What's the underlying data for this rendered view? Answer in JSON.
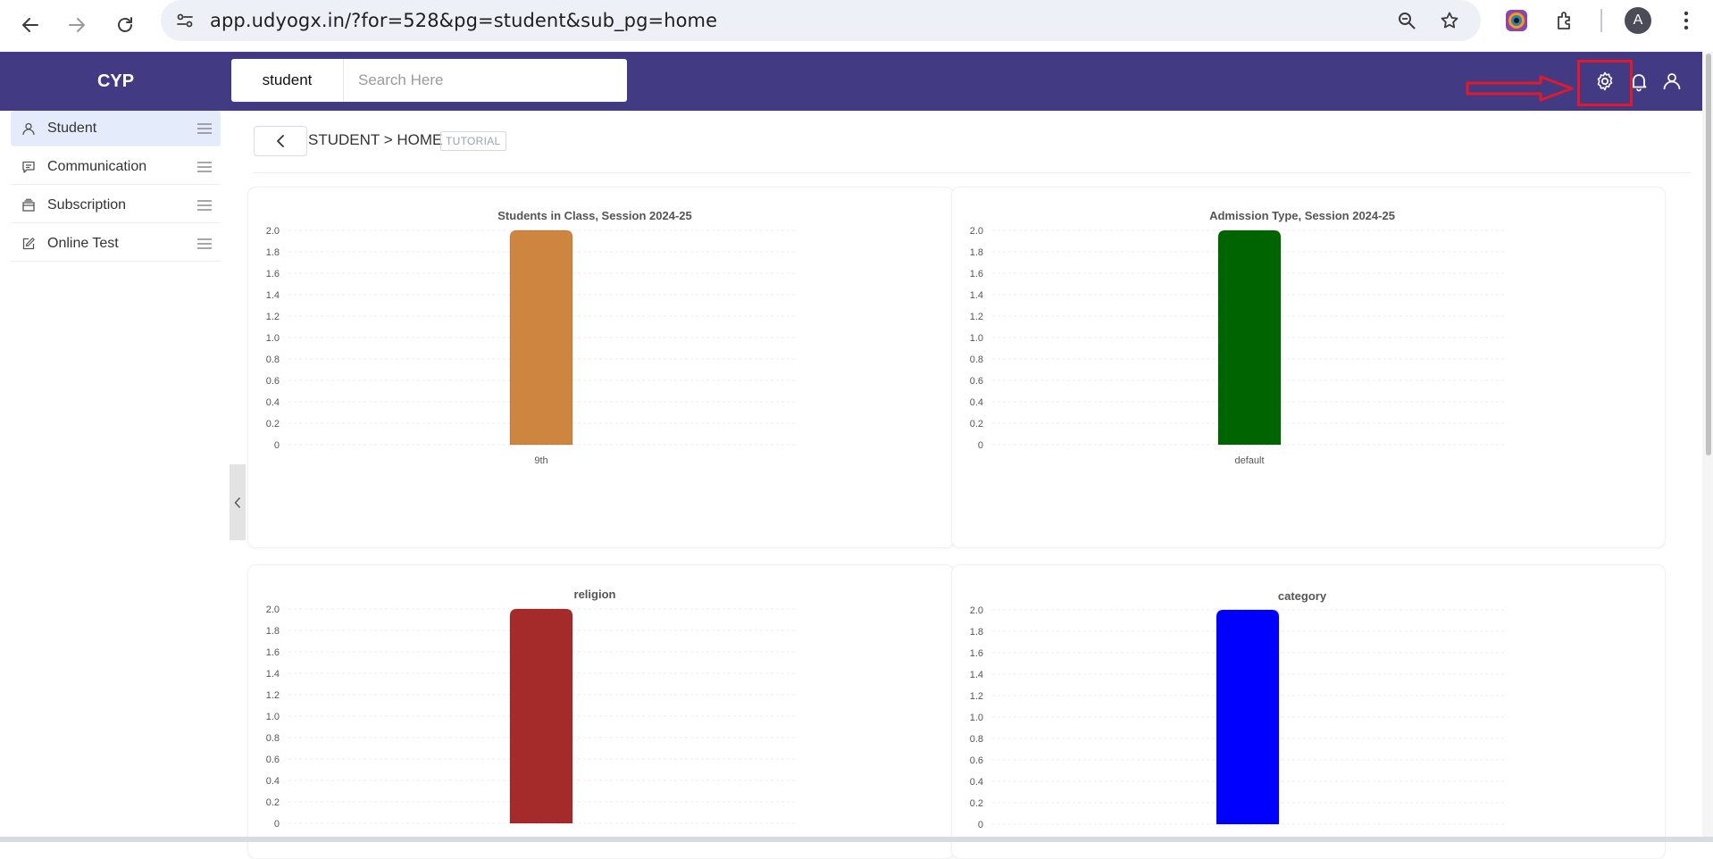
{
  "browser": {
    "url": "app.udyogx.in/?for=528&pg=student&sub_pg=home",
    "profile_initial": "A",
    "icons": [
      "back-arrow-icon",
      "forward-arrow-icon",
      "reload-icon",
      "site-settings-icon",
      "zoom-icon",
      "bookmark-star-icon",
      "extension-app-icon",
      "extensions-puzzle-icon",
      "kebab-menu-icon"
    ]
  },
  "header": {
    "brand": "CYP",
    "search_module": "student",
    "search_placeholder": "Search Here",
    "icons": [
      "settings-gear-icon",
      "notification-bell-icon",
      "user-profile-icon"
    ],
    "highlight_color": "#e5182b",
    "bg_color": "#433a84"
  },
  "sidebar": {
    "items": [
      {
        "label": "Student",
        "icon": "person-icon",
        "active": true
      },
      {
        "label": "Communication",
        "icon": "message-icon",
        "active": false
      },
      {
        "label": "Subscription",
        "icon": "card-stack-icon",
        "active": false
      },
      {
        "label": "Online Test",
        "icon": "edit-square-icon",
        "active": false
      }
    ]
  },
  "main": {
    "breadcrumb": "STUDENT > HOME",
    "tutorial": "TUTORIAL"
  },
  "chart_data": [
    {
      "type": "bar",
      "title": "Students in Class, Session 2024-25",
      "categories": [
        "9th"
      ],
      "values": [
        2
      ],
      "ylim": [
        0,
        2
      ],
      "yticks": [
        "0",
        "0.2",
        "0.4",
        "0.6",
        "0.8",
        "1.0",
        "1.2",
        "1.4",
        "1.6",
        "1.8",
        "2.0"
      ],
      "color": "#cd853f"
    },
    {
      "type": "bar",
      "title": "Admission Type, Session 2024-25",
      "categories": [
        "default"
      ],
      "values": [
        2
      ],
      "ylim": [
        0,
        2
      ],
      "yticks": [
        "0",
        "0.2",
        "0.4",
        "0.6",
        "0.8",
        "1.0",
        "1.2",
        "1.4",
        "1.6",
        "1.8",
        "2.0"
      ],
      "color": "#006400"
    },
    {
      "type": "bar",
      "title": "religion",
      "categories": [
        ""
      ],
      "values": [
        2
      ],
      "ylim": [
        0,
        2
      ],
      "yticks": [
        "0",
        "0.2",
        "0.4",
        "0.6",
        "0.8",
        "1.0",
        "1.2",
        "1.4",
        "1.6",
        "1.8",
        "2.0"
      ],
      "color": "#a52a2a"
    },
    {
      "type": "bar",
      "title": "category",
      "categories": [
        ""
      ],
      "values": [
        2
      ],
      "ylim": [
        0,
        2
      ],
      "yticks": [
        "0",
        "0.2",
        "0.4",
        "0.6",
        "0.8",
        "1.0",
        "1.2",
        "1.4",
        "1.6",
        "1.8",
        "2.0"
      ],
      "color": "#0000ff"
    }
  ]
}
